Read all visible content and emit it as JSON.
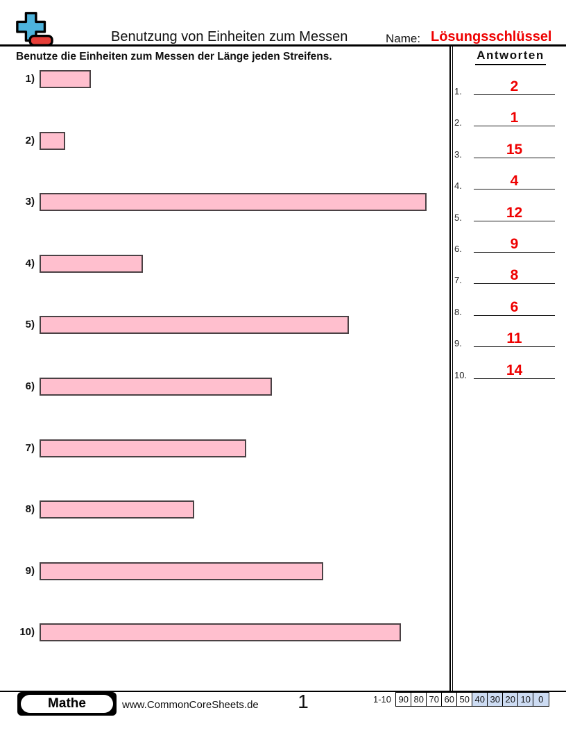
{
  "header": {
    "title": "Benutzung von Einheiten zum Messen",
    "name_label": "Name:",
    "name_value": "Lösungsschlüssel"
  },
  "instruction": "Benutze die Einheiten zum Messen der Länge jeden Streifens.",
  "questions": [
    {
      "label": "1)",
      "units": 2
    },
    {
      "label": "2)",
      "units": 1
    },
    {
      "label": "3)",
      "units": 15
    },
    {
      "label": "4)",
      "units": 4
    },
    {
      "label": "5)",
      "units": 12
    },
    {
      "label": "6)",
      "units": 9
    },
    {
      "label": "7)",
      "units": 8
    },
    {
      "label": "8)",
      "units": 6
    },
    {
      "label": "9)",
      "units": 11
    },
    {
      "label": "10)",
      "units": 14
    }
  ],
  "answers_panel": {
    "title": "Antworten",
    "rows": [
      {
        "index": "1.",
        "value": "2"
      },
      {
        "index": "2.",
        "value": "1"
      },
      {
        "index": "3.",
        "value": "15"
      },
      {
        "index": "4.",
        "value": "4"
      },
      {
        "index": "5.",
        "value": "12"
      },
      {
        "index": "6.",
        "value": "9"
      },
      {
        "index": "7.",
        "value": "8"
      },
      {
        "index": "8.",
        "value": "6"
      },
      {
        "index": "9.",
        "value": "11"
      },
      {
        "index": "10.",
        "value": "14"
      }
    ]
  },
  "footer": {
    "subject": "Mathe",
    "website": "www.CommonCoreSheets.de",
    "page_number": "1",
    "score_label": "1-10",
    "score_cells": [
      {
        "value": "90",
        "highlight": false
      },
      {
        "value": "80",
        "highlight": false
      },
      {
        "value": "70",
        "highlight": false
      },
      {
        "value": "60",
        "highlight": false
      },
      {
        "value": "50",
        "highlight": false
      },
      {
        "value": "40",
        "highlight": true
      },
      {
        "value": "30",
        "highlight": true
      },
      {
        "value": "20",
        "highlight": true
      },
      {
        "value": "10",
        "highlight": true
      },
      {
        "value": "0",
        "highlight": true
      }
    ]
  },
  "colors": {
    "strip_fill": "#ffbfce",
    "strip_border": "#4a4144",
    "answer_red": "#ee0000",
    "cell_highlight": "#cddcf3",
    "icon_blue": "#4db3dc",
    "icon_red": "#e63e38"
  }
}
